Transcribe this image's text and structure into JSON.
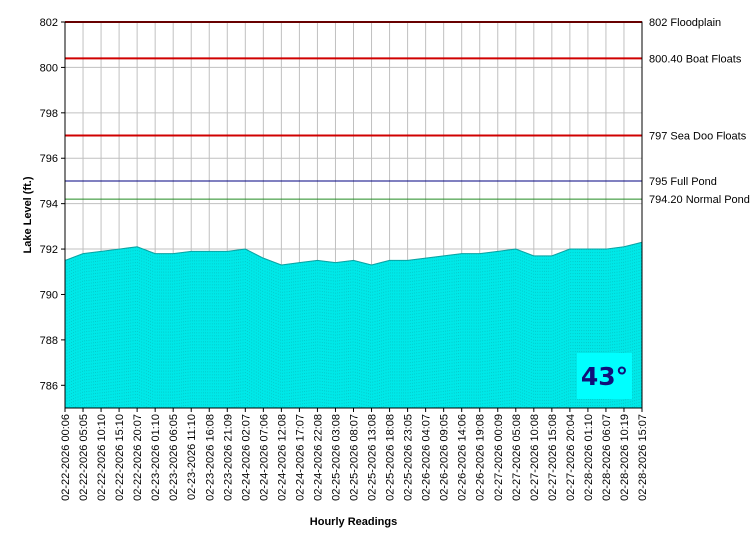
{
  "chart_data": {
    "type": "area",
    "xlabel": "Hourly Readings",
    "ylabel": "Lake Level (ft.)",
    "ylim": [
      785,
      802
    ],
    "y_ticks": [
      786,
      788,
      790,
      792,
      794,
      796,
      798,
      800,
      802
    ],
    "grid": true,
    "fill_color": "#00e8e8",
    "x_tick_labels": [
      "02-22-2026 00:06",
      "02-22-2026 05:05",
      "02-22-2026 10:10",
      "02-22-2026 15:10",
      "02-22-2026 20:07",
      "02-23-2026 01:10",
      "02-23-2026 06:05",
      "02-23-2026 11:10",
      "02-23-2026 16:08",
      "02-23-2026 21:09",
      "02-24-2026 02:07",
      "02-24-2026 07:06",
      "02-24-2026 12:08",
      "02-24-2026 17:07",
      "02-24-2026 22:08",
      "02-25-2026 03:08",
      "02-25-2026 08:07",
      "02-25-2026 13:08",
      "02-25-2026 18:08",
      "02-25-2026 23:05",
      "02-26-2026 04:07",
      "02-26-2026 09:05",
      "02-26-2026 14:06",
      "02-26-2026 19:08",
      "02-27-2026 00:09",
      "02-27-2026 05:08",
      "02-27-2026 10:08",
      "02-27-2026 15:08",
      "02-27-2026 20:04",
      "02-28-2026 01:10",
      "02-28-2026 06:07",
      "02-28-2026 10:19",
      "02-28-2026 15:07"
    ],
    "series": [
      {
        "values": [
          791.5,
          791.8,
          791.9,
          792.0,
          792.1,
          791.8,
          791.8,
          791.9,
          791.9,
          791.9,
          792.0,
          791.6,
          791.3,
          791.4,
          791.5,
          791.4,
          791.5,
          791.3,
          791.5,
          791.5,
          791.6,
          791.7,
          791.8,
          791.8,
          791.9,
          792.0,
          791.7,
          791.7,
          792.0,
          792.0,
          792.0,
          792.1,
          792.3
        ]
      }
    ],
    "reference_lines": [
      {
        "value": 802,
        "label": "802 Floodplain",
        "color": "#d00000"
      },
      {
        "value": 800.4,
        "label": "800.40 Boat Floats",
        "color": "#d00000"
      },
      {
        "value": 797,
        "label": "797 Sea Doo Floats",
        "color": "#d00000"
      },
      {
        "value": 795,
        "label": "795 Full Pond",
        "color": "#000080"
      },
      {
        "value": 794.2,
        "label": "794.20 Normal Pond",
        "color": "#228b22"
      }
    ]
  },
  "temperature": {
    "value": "43°",
    "color": "#10107a",
    "background": "#00ffff"
  }
}
